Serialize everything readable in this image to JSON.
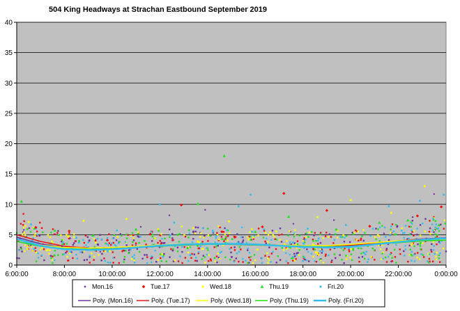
{
  "chart_data": {
    "type": "scatter",
    "title": "504 King Headways at Strachan Eastbound September 2019",
    "xlabel": "",
    "ylabel": "",
    "x_unit": "hours",
    "xlim": [
      6,
      24
    ],
    "ylim": [
      0,
      40
    ],
    "x_ticks": [
      6,
      8,
      10,
      12,
      14,
      16,
      18,
      20,
      22,
      24
    ],
    "x_tick_labels": [
      "6:00:00",
      "8:00:00",
      "10:00:00",
      "12:00:00",
      "14:00:00",
      "16:00:00",
      "18:00:00",
      "20:00:00",
      "22:00:00",
      "0:00:00"
    ],
    "y_ticks": [
      0,
      5,
      10,
      15,
      20,
      25,
      30,
      35,
      40
    ],
    "y_tick_labels": [
      "0",
      "5",
      "10",
      "15",
      "20",
      "25",
      "30",
      "35",
      "40"
    ],
    "grid": "horizontal",
    "plot_background": "#c0c0c0",
    "legend_placement": "bottom",
    "series": [
      {
        "name": "Mon.16",
        "color": "#7030a0",
        "marker": "circle",
        "points": [
          [
            6.3,
            5.8
          ],
          [
            7.9,
            3.1
          ],
          [
            9.5,
            2.2
          ],
          [
            11.2,
            6.3
          ],
          [
            12.4,
            8.2
          ],
          [
            13.9,
            9.1
          ],
          [
            15.5,
            4.1
          ],
          [
            17.6,
            6.8
          ],
          [
            19.3,
            7.4
          ],
          [
            21.4,
            5.2
          ],
          [
            22.6,
            7.9
          ],
          [
            23.5,
            11.7
          ]
        ],
        "trend": [
          [
            6,
            4.6
          ],
          [
            7,
            3.5
          ],
          [
            8,
            2.9
          ],
          [
            9,
            2.7
          ],
          [
            10,
            2.8
          ],
          [
            11,
            3.0
          ],
          [
            12,
            3.2
          ],
          [
            13,
            3.4
          ],
          [
            14,
            3.5
          ],
          [
            15,
            3.5
          ],
          [
            16,
            3.4
          ],
          [
            17,
            3.3
          ],
          [
            18,
            3.2
          ],
          [
            19,
            3.1
          ],
          [
            20,
            3.2
          ],
          [
            21,
            3.5
          ],
          [
            22,
            3.9
          ],
          [
            23,
            4.3
          ],
          [
            24,
            4.5
          ]
        ]
      },
      {
        "name": "Tue.17",
        "color": "#ee1111",
        "marker": "diamond",
        "points": [
          [
            6.8,
            6.2
          ],
          [
            8.2,
            5.6
          ],
          [
            9.8,
            4.1
          ],
          [
            11.6,
            5.1
          ],
          [
            12.9,
            9.9
          ],
          [
            14.6,
            5.5
          ],
          [
            16.3,
            6.3
          ],
          [
            17.2,
            11.8
          ],
          [
            19.0,
            9.0
          ],
          [
            20.8,
            6.4
          ],
          [
            22.8,
            8.1
          ],
          [
            23.8,
            9.6
          ]
        ],
        "trend": [
          [
            6,
            5.0
          ],
          [
            7,
            3.9
          ],
          [
            8,
            3.1
          ],
          [
            9,
            2.8
          ],
          [
            10,
            2.8
          ],
          [
            11,
            3.0
          ],
          [
            12,
            3.2
          ],
          [
            13,
            3.3
          ],
          [
            14,
            3.4
          ],
          [
            15,
            3.4
          ],
          [
            16,
            3.3
          ],
          [
            17,
            3.2
          ],
          [
            18,
            3.1
          ],
          [
            19,
            3.1
          ],
          [
            20,
            3.3
          ],
          [
            21,
            3.6
          ],
          [
            22,
            4.0
          ],
          [
            23,
            4.3
          ],
          [
            24,
            4.4
          ]
        ]
      },
      {
        "name": "Wed.18",
        "color": "#ffff00",
        "marker": "square",
        "points": [
          [
            6.5,
            7.1
          ],
          [
            7.4,
            4.6
          ],
          [
            8.8,
            7.3
          ],
          [
            10.6,
            7.6
          ],
          [
            11.8,
            4.4
          ],
          [
            13.4,
            6.1
          ],
          [
            14.9,
            7.2
          ],
          [
            16.8,
            4.7
          ],
          [
            18.6,
            7.9
          ],
          [
            20.0,
            10.7
          ],
          [
            21.7,
            8.6
          ],
          [
            23.1,
            13.0
          ]
        ],
        "trend": [
          [
            6,
            4.2
          ],
          [
            7,
            3.3
          ],
          [
            8,
            2.9
          ],
          [
            9,
            2.8
          ],
          [
            10,
            2.9
          ],
          [
            11,
            3.1
          ],
          [
            12,
            3.3
          ],
          [
            13,
            3.5
          ],
          [
            14,
            3.5
          ],
          [
            15,
            3.5
          ],
          [
            16,
            3.4
          ],
          [
            17,
            3.3
          ],
          [
            18,
            3.2
          ],
          [
            19,
            3.2
          ],
          [
            20,
            3.4
          ],
          [
            21,
            3.7
          ],
          [
            22,
            4.0
          ],
          [
            23,
            4.2
          ],
          [
            24,
            4.3
          ]
        ]
      },
      {
        "name": "Thu.19",
        "color": "#22dd22",
        "marker": "triangle",
        "points": [
          [
            6.2,
            10.5
          ],
          [
            7.6,
            5.7
          ],
          [
            9.2,
            4.9
          ],
          [
            11.0,
            5.9
          ],
          [
            13.6,
            10.1
          ],
          [
            14.7,
            18.0
          ],
          [
            16.0,
            5.5
          ],
          [
            17.4,
            8.0
          ],
          [
            19.4,
            5.9
          ],
          [
            21.2,
            7.0
          ],
          [
            22.4,
            7.4
          ],
          [
            23.7,
            6.6
          ]
        ],
        "trend": [
          [
            6,
            3.9
          ],
          [
            7,
            3.1
          ],
          [
            8,
            2.7
          ],
          [
            9,
            2.6
          ],
          [
            10,
            2.7
          ],
          [
            11,
            2.9
          ],
          [
            12,
            3.1
          ],
          [
            13,
            3.3
          ],
          [
            14,
            3.4
          ],
          [
            15,
            3.4
          ],
          [
            16,
            3.3
          ],
          [
            17,
            3.2
          ],
          [
            18,
            3.1
          ],
          [
            19,
            3.0
          ],
          [
            20,
            3.1
          ],
          [
            21,
            3.4
          ],
          [
            22,
            3.7
          ],
          [
            23,
            4.0
          ],
          [
            24,
            4.1
          ]
        ]
      },
      {
        "name": "Fri.20",
        "color": "#33bbee",
        "marker": "square",
        "points": [
          [
            6.6,
            6.7
          ],
          [
            8.5,
            4.5
          ],
          [
            10.2,
            5.7
          ],
          [
            12.0,
            10.0
          ],
          [
            12.6,
            7.0
          ],
          [
            15.3,
            9.7
          ],
          [
            15.8,
            11.6
          ],
          [
            18.2,
            6.0
          ],
          [
            19.8,
            6.6
          ],
          [
            21.6,
            9.7
          ],
          [
            22.9,
            10.6
          ],
          [
            23.9,
            11.6
          ]
        ],
        "trend": [
          [
            6,
            4.3
          ],
          [
            7,
            3.2
          ],
          [
            8,
            2.6
          ],
          [
            9,
            2.5
          ],
          [
            10,
            2.6
          ],
          [
            11,
            2.9
          ],
          [
            12,
            3.2
          ],
          [
            13,
            3.4
          ],
          [
            14,
            3.5
          ],
          [
            15,
            3.5
          ],
          [
            16,
            3.4
          ],
          [
            17,
            3.2
          ],
          [
            18,
            3.0
          ],
          [
            19,
            2.9
          ],
          [
            20,
            3.0
          ],
          [
            21,
            3.4
          ],
          [
            22,
            3.8
          ],
          [
            23,
            4.2
          ],
          [
            24,
            4.4
          ]
        ]
      }
    ],
    "trend_legend": [
      "Poly. (Mon.16)",
      "Poly. (Tue.17)",
      "Poly. (Wed.18)",
      "Poly. (Thu.19)",
      "Poly. (Fri.20)"
    ],
    "trend_colors": [
      "#7030a0",
      "#ee1111",
      "#ffff00",
      "#22dd22",
      "#33bbee"
    ]
  }
}
